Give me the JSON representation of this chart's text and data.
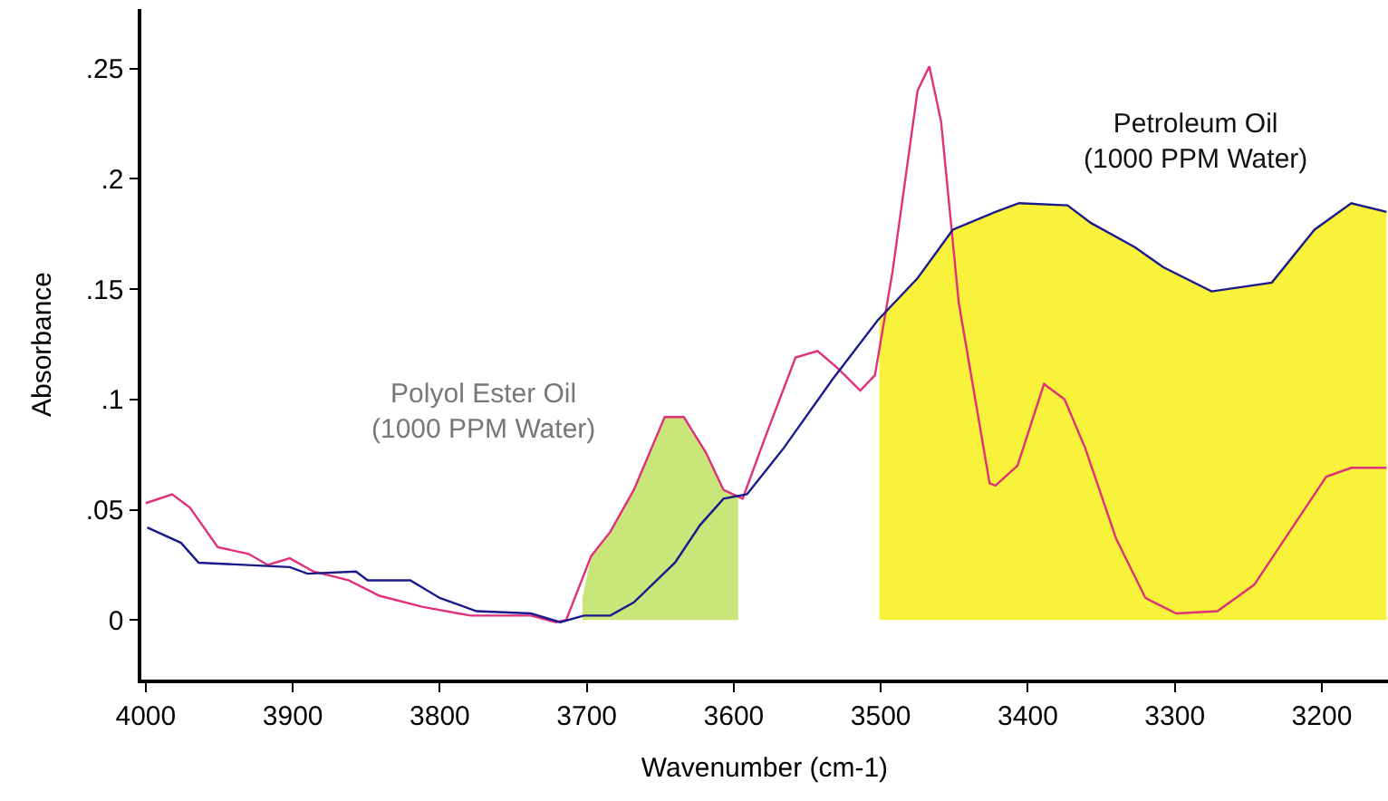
{
  "chart_data": {
    "type": "line",
    "xlabel": "Wavenumber (cm-1)",
    "ylabel": "Absorbance",
    "xlim": [
      4003,
      3155
    ],
    "xticks": [
      4000,
      3900,
      3800,
      3700,
      3600,
      3500,
      3400,
      3300,
      3200
    ],
    "ylim": [
      -0.027,
      0.277
    ],
    "yticks": [
      {
        "value": 0,
        "label": "0"
      },
      {
        "value": 0.05,
        "label": ".05"
      },
      {
        "value": 0.1,
        "label": ".1"
      },
      {
        "value": 0.15,
        "label": ".15"
      },
      {
        "value": 0.2,
        "label": ".2"
      },
      {
        "value": 0.25,
        "label": ".25"
      }
    ],
    "marker": "none",
    "line_style": "solid",
    "annotations": [
      "Polyol Ester Oil\n(1000 PPM Water)",
      "Petroleum Oil\n(1000 PPM Water)"
    ],
    "series": [
      {
        "type": "area",
        "color": "#c8e67a",
        "x": [
          3703,
          3697,
          3684,
          3668,
          3647,
          3634,
          3619,
          3607,
          3597
        ],
        "values": [
          0.01,
          0.029,
          0.04,
          0.059,
          0.092,
          0.092,
          0.076,
          0.059,
          0.056
        ]
      },
      {
        "type": "area",
        "color": "#f9f23a",
        "x": [
          3501,
          3475,
          3451,
          3422,
          3406,
          3373,
          3357,
          3327,
          3308,
          3275,
          3234,
          3205,
          3180,
          3156
        ],
        "values": [
          0.137,
          0.155,
          0.177,
          0.185,
          0.189,
          0.188,
          0.18,
          0.169,
          0.16,
          0.149,
          0.153,
          0.177,
          0.189,
          0.185
        ]
      },
      {
        "color": "#e0307a",
        "x": [
          4000,
          3982,
          3970,
          3951,
          3930,
          3917,
          3902,
          3886,
          3862,
          3841,
          3812,
          3779,
          3738,
          3721,
          3714,
          3697,
          3684,
          3668,
          3647,
          3634,
          3619,
          3607,
          3594,
          3578,
          3558,
          3543,
          3529,
          3514,
          3504,
          3492,
          3475,
          3467,
          3459,
          3447,
          3426,
          3422,
          3407,
          3389,
          3375,
          3361,
          3340,
          3320,
          3299,
          3271,
          3246,
          3222,
          3197,
          3180,
          3156
        ],
        "values": [
          0.053,
          0.057,
          0.051,
          0.033,
          0.03,
          0.025,
          0.028,
          0.022,
          0.018,
          0.011,
          0.006,
          0.002,
          0.002,
          -0.001,
          0,
          0.029,
          0.04,
          0.059,
          0.092,
          0.092,
          0.076,
          0.059,
          0.055,
          0.084,
          0.119,
          0.122,
          0.114,
          0.104,
          0.111,
          0.158,
          0.24,
          0.251,
          0.226,
          0.144,
          0.062,
          0.061,
          0.07,
          0.107,
          0.1,
          0.078,
          0.037,
          0.01,
          0.003,
          0.004,
          0.016,
          0.04,
          0.065,
          0.069,
          0.069
        ]
      },
      {
        "color": "#1a1a8c",
        "x": [
          3999,
          3976,
          3964,
          3902,
          3890,
          3857,
          3849,
          3820,
          3800,
          3775,
          3738,
          3718,
          3702,
          3684,
          3668,
          3640,
          3623,
          3607,
          3591,
          3566,
          3533,
          3502,
          3475,
          3451,
          3422,
          3406,
          3373,
          3357,
          3327,
          3308,
          3275,
          3234,
          3205,
          3180,
          3156
        ],
        "values": [
          0.042,
          0.035,
          0.026,
          0.024,
          0.021,
          0.022,
          0.018,
          0.018,
          0.01,
          0.004,
          0.003,
          -0.001,
          0.002,
          0.002,
          0.008,
          0.026,
          0.043,
          0.055,
          0.057,
          0.078,
          0.109,
          0.136,
          0.155,
          0.177,
          0.185,
          0.189,
          0.188,
          0.18,
          0.169,
          0.16,
          0.149,
          0.153,
          0.177,
          0.189,
          0.185
        ]
      }
    ]
  }
}
